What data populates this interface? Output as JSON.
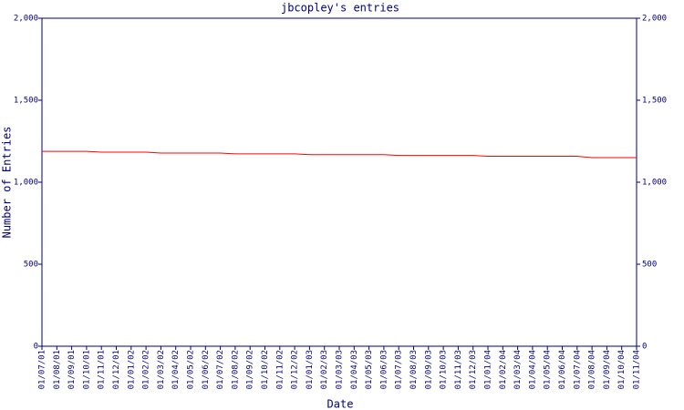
{
  "chart_data": {
    "type": "line",
    "title": "jbcopley's entries",
    "x_label": "Date",
    "y_label": "Number of Entries",
    "categories": [
      "01/07/01",
      "01/08/01",
      "01/09/01",
      "01/10/01",
      "01/11/01",
      "01/12/01",
      "01/01/02",
      "01/02/02",
      "01/03/02",
      "01/04/02",
      "01/05/02",
      "01/06/02",
      "01/07/02",
      "01/08/02",
      "01/09/02",
      "01/10/02",
      "01/11/02",
      "01/12/02",
      "01/01/03",
      "01/02/03",
      "01/03/03",
      "01/04/03",
      "01/05/03",
      "01/06/03",
      "01/07/03",
      "01/08/03",
      "01/09/03",
      "01/10/03",
      "01/11/03",
      "01/12/03",
      "01/01/04",
      "01/02/04",
      "01/03/04",
      "01/04/04",
      "01/05/04",
      "01/06/04",
      "01/07/04",
      "01/08/04",
      "01/09/04",
      "01/10/04",
      "01/11/04"
    ],
    "values": [
      1188,
      1188,
      1188,
      1188,
      1183,
      1183,
      1183,
      1183,
      1178,
      1178,
      1178,
      1178,
      1178,
      1173,
      1173,
      1173,
      1173,
      1173,
      1168,
      1168,
      1168,
      1168,
      1168,
      1168,
      1163,
      1163,
      1163,
      1163,
      1163,
      1163,
      1158,
      1158,
      1158,
      1158,
      1158,
      1158,
      1158,
      1150,
      1150,
      1150,
      1150
    ],
    "color": "#ff0000",
    "axis_color": "#000080",
    "ylim": [
      0,
      2000
    ],
    "yticks": [
      0,
      500,
      {
        "value": 1000,
        "label": "1,000"
      },
      {
        "value": 1500,
        "label": "1,500"
      },
      {
        "value": 2000,
        "label": "2,000"
      }
    ],
    "right_axis": true
  }
}
